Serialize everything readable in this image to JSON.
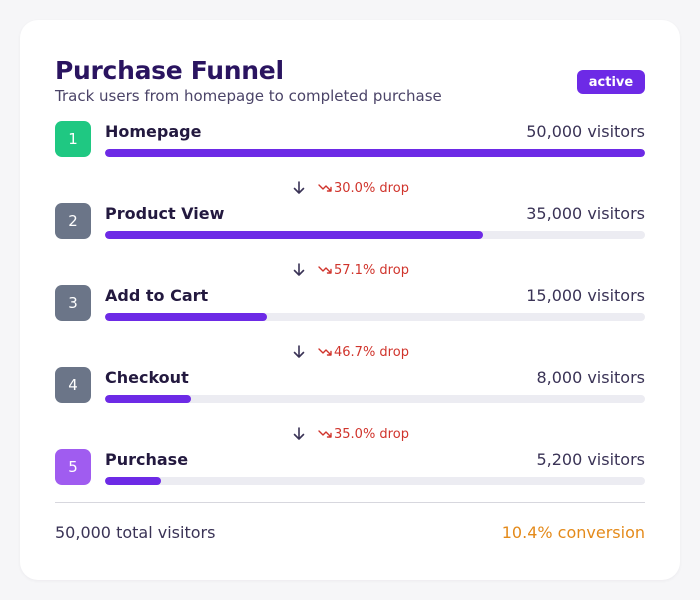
{
  "header": {
    "title": "Purchase Funnel",
    "subtitle": "Track users from homepage to completed purchase",
    "status": "active"
  },
  "colors": {
    "accent": "#6d2ae6",
    "stage1": "#1fc882",
    "stage_mid": "#6b7588",
    "stage5": "#a05cf0",
    "drop": "#d0342c",
    "conversion": "#e48a1a"
  },
  "chart_data": {
    "type": "bar",
    "categories": [
      "Homepage",
      "Product View",
      "Add to Cart",
      "Checkout",
      "Purchase"
    ],
    "values": [
      50000,
      35000,
      15000,
      8000,
      5200
    ],
    "ylim": [
      0,
      50000
    ]
  },
  "stages": [
    {
      "num": "1",
      "name": "Homepage",
      "value_label": "50,000 visitors",
      "color": "#1fc882"
    },
    {
      "num": "2",
      "name": "Product View",
      "value_label": "35,000 visitors",
      "color": "#6b7588"
    },
    {
      "num": "3",
      "name": "Add to Cart",
      "value_label": "15,000 visitors",
      "color": "#6b7588"
    },
    {
      "num": "4",
      "name": "Checkout",
      "value_label": "8,000 visitors",
      "color": "#6b7588"
    },
    {
      "num": "5",
      "name": "Purchase",
      "value_label": "5,200 visitors",
      "color": "#a05cf0"
    }
  ],
  "drops": [
    "30.0% drop",
    "57.1% drop",
    "46.7% drop",
    "35.0% drop"
  ],
  "footer": {
    "total": "50,000 total visitors",
    "conversion": "10.4% conversion"
  }
}
